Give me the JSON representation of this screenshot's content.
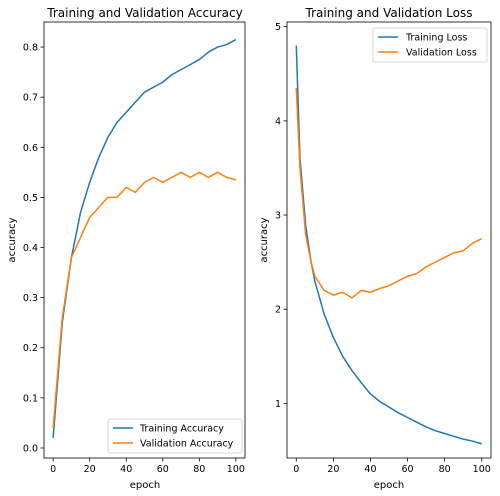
{
  "chart_data": [
    {
      "type": "line",
      "title": "Training and Validation Accuracy",
      "xlabel": "epoch",
      "ylabel": "accuracy",
      "xlim": [
        -5,
        105
      ],
      "ylim": [
        -0.02,
        0.85
      ],
      "xticks": [
        0,
        20,
        40,
        60,
        80,
        100
      ],
      "xtick_labels": [
        "0",
        "20",
        "40",
        "60",
        "80",
        "100"
      ],
      "yticks": [
        0.0,
        0.1,
        0.2,
        0.3,
        0.4,
        0.5,
        0.6,
        0.7,
        0.8
      ],
      "ytick_labels": [
        "0.0",
        "0.1",
        "0.2",
        "0.3",
        "0.4",
        "0.5",
        "0.6",
        "0.7",
        "0.8"
      ],
      "grid": false,
      "legend_position": "lower-right",
      "series": [
        {
          "name": "Training Accuracy",
          "color": "#1f77b4",
          "x": [
            0,
            5,
            10,
            15,
            20,
            25,
            30,
            35,
            40,
            45,
            50,
            55,
            60,
            65,
            70,
            75,
            80,
            85,
            90,
            95,
            100
          ],
          "y": [
            0.02,
            0.25,
            0.38,
            0.47,
            0.53,
            0.58,
            0.62,
            0.65,
            0.67,
            0.69,
            0.71,
            0.72,
            0.73,
            0.745,
            0.755,
            0.765,
            0.775,
            0.79,
            0.8,
            0.805,
            0.815
          ]
        },
        {
          "name": "Validation Accuracy",
          "color": "#ff7f0e",
          "x": [
            0,
            5,
            10,
            15,
            20,
            25,
            30,
            35,
            40,
            45,
            50,
            55,
            60,
            65,
            70,
            75,
            80,
            85,
            90,
            95,
            100
          ],
          "y": [
            0.04,
            0.26,
            0.38,
            0.42,
            0.46,
            0.48,
            0.5,
            0.5,
            0.52,
            0.51,
            0.53,
            0.54,
            0.53,
            0.54,
            0.55,
            0.54,
            0.55,
            0.54,
            0.55,
            0.54,
            0.535
          ]
        }
      ]
    },
    {
      "type": "line",
      "title": "Training and Validation Loss",
      "xlabel": "epoch",
      "ylabel": "accuracy",
      "xlim": [
        -5,
        105
      ],
      "ylim": [
        0.42,
        5.05
      ],
      "xticks": [
        0,
        20,
        40,
        60,
        80,
        100
      ],
      "xtick_labels": [
        "0",
        "20",
        "40",
        "60",
        "80",
        "100"
      ],
      "yticks": [
        1,
        2,
        3,
        4,
        5
      ],
      "ytick_labels": [
        "1",
        "2",
        "3",
        "4",
        "5"
      ],
      "grid": false,
      "legend_position": "upper-right",
      "series": [
        {
          "name": "Training Loss",
          "color": "#1f77b4",
          "x": [
            0,
            2,
            5,
            8,
            10,
            15,
            20,
            25,
            30,
            35,
            40,
            45,
            50,
            55,
            60,
            65,
            70,
            75,
            80,
            85,
            90,
            95,
            100
          ],
          "y": [
            4.8,
            3.6,
            2.9,
            2.5,
            2.3,
            1.95,
            1.7,
            1.5,
            1.35,
            1.22,
            1.1,
            1.02,
            0.96,
            0.9,
            0.85,
            0.8,
            0.75,
            0.71,
            0.68,
            0.65,
            0.62,
            0.6,
            0.57
          ]
        },
        {
          "name": "Validation Loss",
          "color": "#ff7f0e",
          "x": [
            0,
            2,
            5,
            8,
            10,
            15,
            20,
            25,
            30,
            35,
            40,
            45,
            50,
            55,
            60,
            65,
            70,
            75,
            80,
            85,
            90,
            95,
            100
          ],
          "y": [
            4.35,
            3.5,
            2.8,
            2.5,
            2.35,
            2.2,
            2.15,
            2.18,
            2.12,
            2.2,
            2.18,
            2.22,
            2.25,
            2.3,
            2.35,
            2.38,
            2.45,
            2.5,
            2.55,
            2.6,
            2.62,
            2.7,
            2.75
          ]
        }
      ]
    }
  ]
}
